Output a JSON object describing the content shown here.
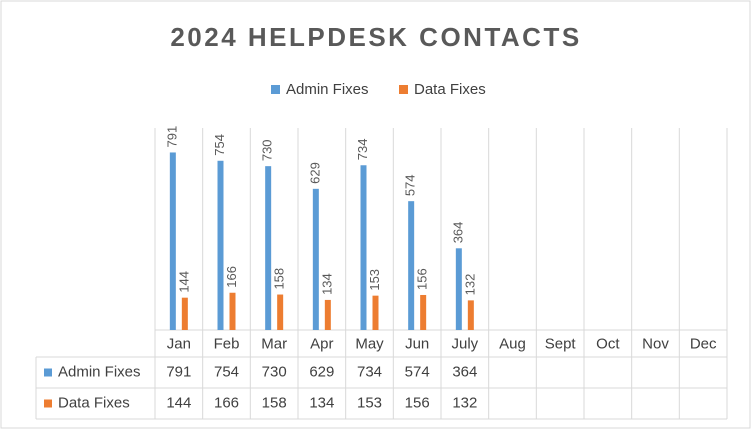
{
  "chart_data": {
    "type": "bar",
    "title": "2024 HELPDESK CONTACTS",
    "categories": [
      "Jan",
      "Feb",
      "Mar",
      "Apr",
      "May",
      "Jun",
      "July",
      "Aug",
      "Sept",
      "Oct",
      "Nov",
      "Dec"
    ],
    "series": [
      {
        "name": "Admin Fixes",
        "color": "#5b9bd5",
        "values": [
          791,
          754,
          730,
          629,
          734,
          574,
          364,
          null,
          null,
          null,
          null,
          null
        ]
      },
      {
        "name": "Data Fixes",
        "color": "#ed7d31",
        "values": [
          144,
          166,
          158,
          134,
          153,
          156,
          132,
          null,
          null,
          null,
          null,
          null
        ]
      }
    ],
    "ylim": [
      0,
      900
    ],
    "legend": "top"
  }
}
